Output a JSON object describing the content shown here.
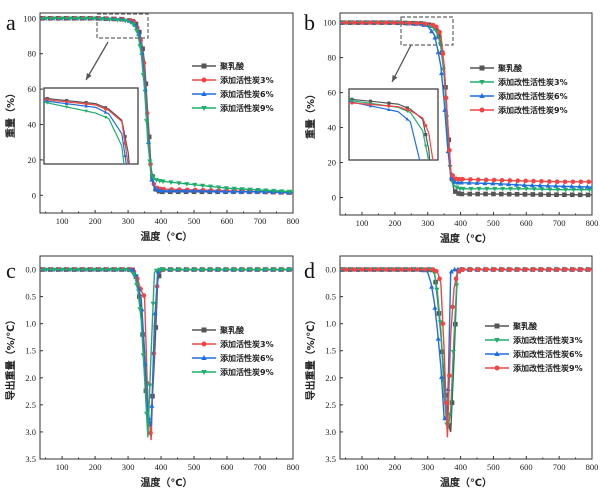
{
  "colors": {
    "pla": "#555555",
    "red": "#f04545",
    "blue": "#1f6fe0",
    "green": "#1fae6e"
  },
  "chart_data": [
    {
      "panel": "a",
      "type": "line",
      "xlabel": "温度（℃）",
      "ylabel": "重量（%）",
      "xlim": [
        33,
        800
      ],
      "ylim": [
        -10,
        103
      ],
      "xticks": [
        100,
        200,
        300,
        400,
        500,
        600,
        700,
        800
      ],
      "yticks": [
        0,
        20,
        40,
        60,
        80,
        100
      ],
      "legend": "right",
      "inset": true,
      "x": [
        30,
        100,
        200,
        280,
        300,
        320,
        330,
        340,
        350,
        360,
        370,
        380,
        390,
        400,
        500,
        600,
        700,
        800
      ],
      "series": [
        {
          "name": "聚乳酸",
          "color": "#555555",
          "marker": "square",
          "values": [
            100,
            100,
            100,
            99.5,
            99,
            98,
            95,
            88,
            75,
            45,
            15,
            4,
            2.5,
            2,
            2,
            2,
            2,
            1.5
          ]
        },
        {
          "name": "添加活性炭3%",
          "color": "#f04545",
          "marker": "circle",
          "values": [
            100,
            100,
            100,
            99.5,
            99,
            98,
            94,
            86,
            72,
            40,
            12,
            5,
            4,
            3.5,
            3,
            2.5,
            2,
            1.5
          ]
        },
        {
          "name": "添加活性炭6%",
          "color": "#1f6fe0",
          "marker": "triangle-up",
          "values": [
            100,
            100,
            100,
            99.4,
            98.8,
            97,
            93,
            84,
            66,
            35,
            10,
            4,
            3,
            2.5,
            2.5,
            2,
            2,
            1.5
          ]
        },
        {
          "name": "添加活性炭9%",
          "color": "#1fae6e",
          "marker": "triangle-down",
          "values": [
            100,
            100,
            100,
            99,
            98.5,
            96,
            91,
            80,
            60,
            30,
            12,
            9,
            8.5,
            8,
            6,
            4,
            3,
            2
          ]
        }
      ]
    },
    {
      "panel": "b",
      "type": "line",
      "xlabel": "温度（℃）",
      "ylabel": "重量（%）",
      "xlim": [
        33,
        800
      ],
      "ylim": [
        -10,
        105.5
      ],
      "xticks": [
        100,
        200,
        300,
        400,
        500,
        600,
        700,
        800
      ],
      "yticks": [
        0,
        20,
        40,
        60,
        80,
        100
      ],
      "legend": "right",
      "inset": true,
      "x": [
        30,
        100,
        200,
        280,
        300,
        320,
        330,
        340,
        350,
        360,
        370,
        380,
        390,
        400,
        500,
        600,
        700,
        800
      ],
      "series": [
        {
          "name": "聚乳酸",
          "color": "#555555",
          "marker": "square",
          "values": [
            100,
            100,
            100,
            99.5,
            99,
            98,
            95,
            88,
            75,
            45,
            15,
            4,
            2.5,
            2,
            2,
            1.8,
            1.6,
            1.5
          ]
        },
        {
          "name": "添加改性活性炭3%",
          "color": "#1fae6e",
          "marker": "triangle-down",
          "values": [
            100,
            100,
            100,
            99.3,
            98.8,
            97,
            94,
            86,
            70,
            40,
            12,
            7,
            5.5,
            5,
            5,
            5,
            4.5,
            4.5
          ]
        },
        {
          "name": "添加改性活性炭6%",
          "color": "#1f6fe0",
          "marker": "triangle-up",
          "values": [
            100,
            100,
            100,
            99,
            98,
            93,
            85,
            75,
            55,
            30,
            12,
            9,
            8.5,
            8.5,
            8,
            7,
            6.5,
            6
          ]
        },
        {
          "name": "添加改性活性炭9%",
          "color": "#f04545",
          "marker": "circle",
          "values": [
            100,
            100,
            100,
            99.6,
            99.2,
            98.5,
            97,
            93,
            75,
            45,
            15,
            11,
            10.5,
            10.5,
            10,
            9.5,
            9,
            9
          ]
        }
      ]
    },
    {
      "panel": "c",
      "type": "line",
      "xlabel": "温度（℃）",
      "ylabel": "导出重量（%/℃）",
      "xlim": [
        33,
        800
      ],
      "ylim": [
        -0.25,
        3.5
      ],
      "yreversed": true,
      "xticks": [
        100,
        200,
        300,
        400,
        500,
        600,
        700,
        800
      ],
      "yticks": [
        0.0,
        0.5,
        1.0,
        1.5,
        2.0,
        2.5,
        3.0,
        3.5
      ],
      "legend": "right",
      "x": [
        30,
        100,
        200,
        290,
        300,
        310,
        320,
        330,
        340,
        350,
        360,
        370,
        380,
        390,
        400,
        500,
        600,
        700,
        800
      ],
      "series": [
        {
          "name": "聚乳酸",
          "color": "#555555",
          "marker": "square",
          "values": [
            0,
            0,
            0,
            0,
            0,
            0,
            0.02,
            0.3,
            0.8,
            1.8,
            2.9,
            2.8,
            1.65,
            0.2,
            0,
            0,
            0,
            0,
            0
          ]
        },
        {
          "name": "添加活性炭3%",
          "color": "#f04545",
          "marker": "circle",
          "values": [
            0,
            0,
            0,
            0,
            0,
            0,
            0.05,
            0.2,
            0.4,
            0.5,
            2.5,
            3.15,
            1.15,
            0.1,
            0,
            0,
            0,
            0,
            0
          ]
        },
        {
          "name": "添加活性炭6%",
          "color": "#1f6fe0",
          "marker": "triangle-up",
          "values": [
            0,
            0,
            0,
            0,
            0,
            0,
            0.05,
            0.3,
            0.55,
            1.5,
            2.7,
            2.9,
            1.0,
            0.05,
            0,
            0,
            0,
            0,
            0
          ]
        },
        {
          "name": "添加活性炭9%",
          "color": "#1fae6e",
          "marker": "triangle-down",
          "values": [
            0,
            0,
            0,
            0,
            0,
            0.05,
            0.1,
            0.4,
            0.95,
            2.0,
            3.1,
            1.5,
            0.05,
            0,
            0,
            0,
            0,
            0,
            0
          ]
        }
      ]
    },
    {
      "panel": "d",
      "type": "line",
      "xlabel": "温度（℃）",
      "ylabel": "导出重量（%/℃）",
      "xlim": [
        33,
        800
      ],
      "ylim": [
        -0.25,
        3.5
      ],
      "yreversed": true,
      "xticks": [
        100,
        200,
        300,
        400,
        500,
        600,
        700,
        800
      ],
      "yticks": [
        0.0,
        0.5,
        1.0,
        1.5,
        2.0,
        2.5,
        3.0,
        3.5
      ],
      "legend": "right",
      "x": [
        30,
        100,
        200,
        280,
        290,
        300,
        310,
        320,
        330,
        340,
        350,
        360,
        370,
        380,
        390,
        400,
        500,
        600,
        700,
        800
      ],
      "series": [
        {
          "name": "聚乳酸",
          "color": "#555555",
          "marker": "square",
          "values": [
            0,
            0,
            0,
            0,
            0,
            0,
            0,
            0.02,
            0.55,
            1.2,
            2.0,
            2.8,
            3.0,
            1.65,
            0.05,
            0,
            0,
            0,
            0,
            0
          ]
        },
        {
          "name": "添加改性活性炭3%",
          "color": "#1fae6e",
          "marker": "triangle-down",
          "values": [
            0,
            0,
            0,
            0,
            0,
            0,
            0,
            0.05,
            0.45,
            1.1,
            2.3,
            3.0,
            2.6,
            1.25,
            0.05,
            0,
            0,
            0,
            0,
            0
          ]
        },
        {
          "name": "添加改性活性炭6%",
          "color": "#1f6fe0",
          "marker": "triangle-up",
          "values": [
            0,
            0,
            0,
            0,
            0.02,
            0.05,
            0.25,
            0.6,
            1.15,
            1.8,
            2.75,
            2.75,
            0.05,
            0,
            0,
            0,
            0,
            0,
            0,
            0
          ]
        },
        {
          "name": "添加改性活性炭9%",
          "color": "#f04545",
          "marker": "circle",
          "values": [
            0,
            0,
            0,
            0,
            0,
            0,
            0,
            0,
            0.05,
            0.25,
            1.5,
            3.1,
            1.2,
            0.35,
            0.05,
            0,
            0,
            0,
            0,
            0
          ]
        }
      ]
    }
  ]
}
